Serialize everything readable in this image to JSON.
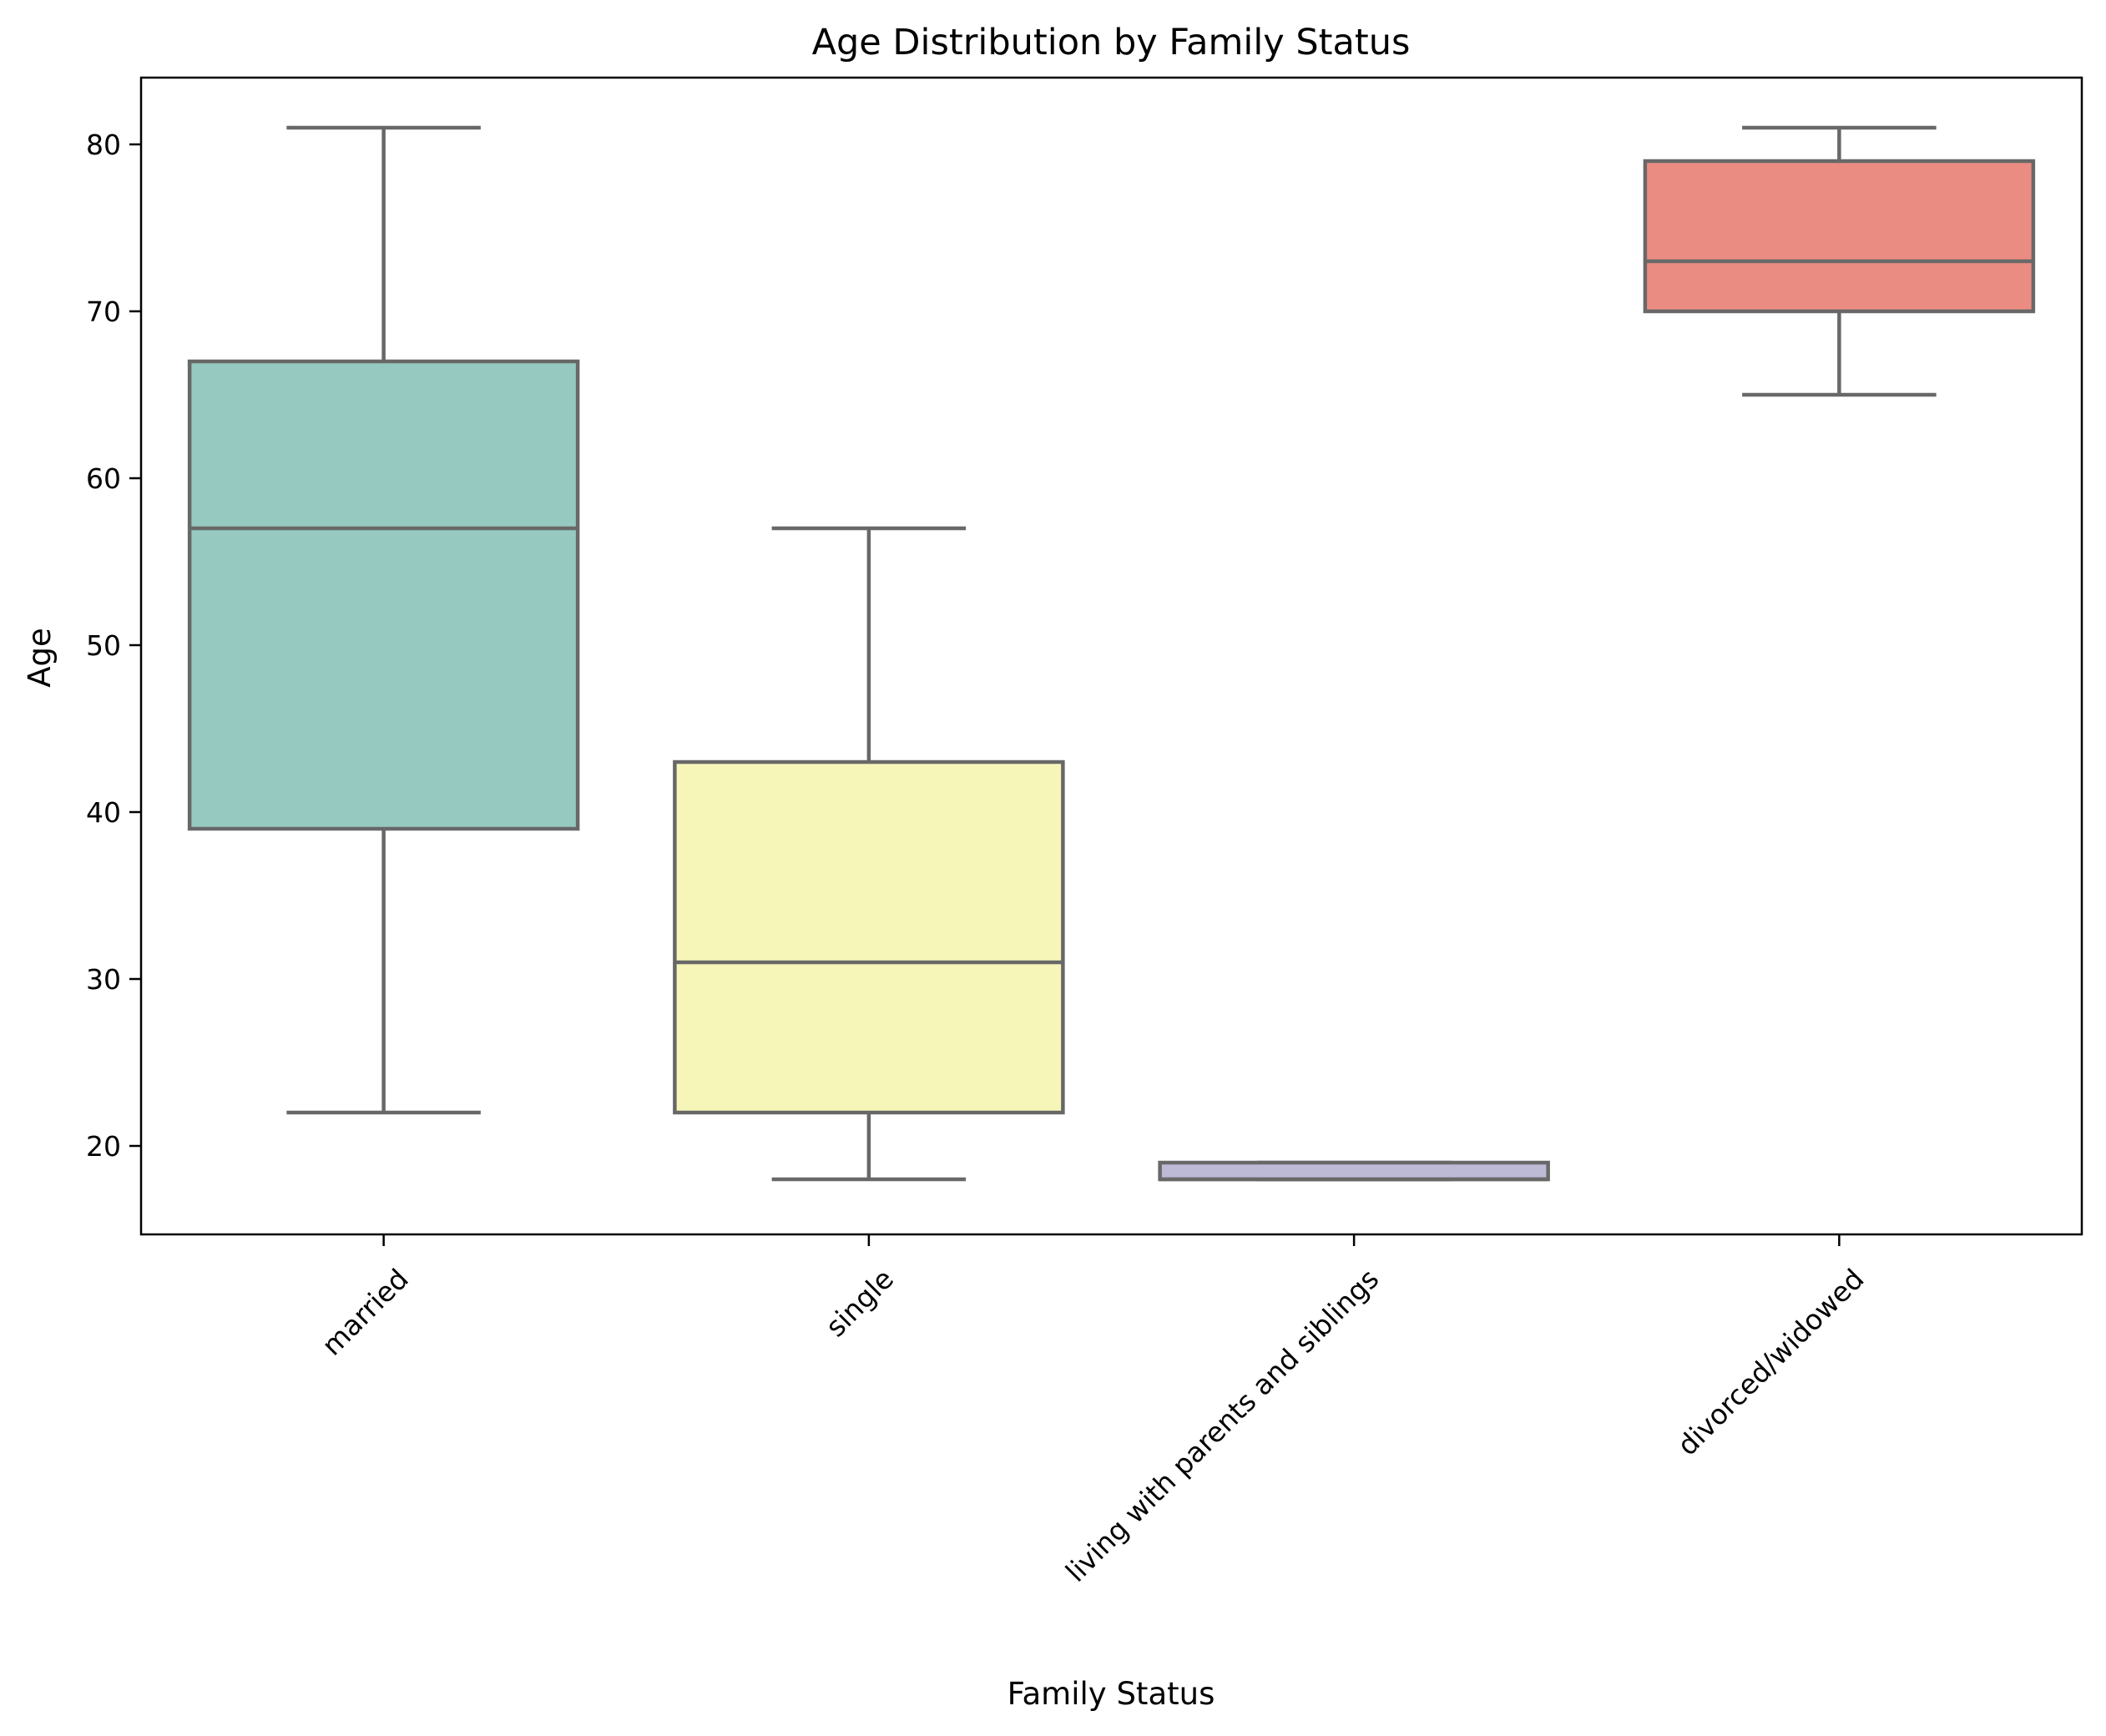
{
  "chart_data": {
    "type": "box",
    "title": "Age Distribution by Family Status",
    "xlabel": "Family Status",
    "ylabel": "Age",
    "ylim": [
      14.7,
      84.0
    ],
    "yticks": [
      20,
      30,
      40,
      50,
      60,
      70,
      80
    ],
    "grid": false,
    "legend": "none",
    "line_color": "#686868",
    "categories": [
      "married",
      "single",
      "living with parents and siblings",
      "divorced/widowed"
    ],
    "boxes": [
      {
        "category": "married",
        "whisker_low": 22,
        "q1": 39,
        "median": 57,
        "q3": 67,
        "whisker_high": 81,
        "color": "#96c9c0"
      },
      {
        "category": "single",
        "whisker_low": 18,
        "q1": 22,
        "median": 31,
        "q3": 43,
        "whisker_high": 57,
        "color": "#f6f6b9"
      },
      {
        "category": "living with parents and siblings",
        "whisker_low": 18,
        "q1": 18,
        "median": 18,
        "q3": 19,
        "whisker_high": 19,
        "color": "#bdbad6"
      },
      {
        "category": "divorced/widowed",
        "whisker_low": 65,
        "q1": 70,
        "median": 73,
        "q3": 79,
        "whisker_high": 81,
        "color": "#eb8c82"
      }
    ]
  }
}
